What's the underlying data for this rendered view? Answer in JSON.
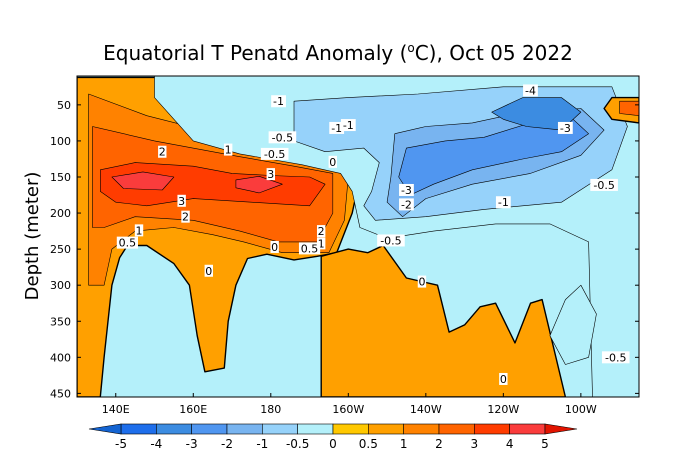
{
  "chart_data": {
    "type": "heatmap",
    "title": "Equatorial T Penatd Anomaly (°C), Oct 05 2022",
    "title_prefix": "Equatorial T Penatd Anomaly (",
    "title_degree": "o",
    "title_suffix": "C), Oct 05 2022",
    "ylabel": "Depth (meter)",
    "xlabel": "",
    "xlim": [
      130,
      275
    ],
    "ylim": [
      455,
      10
    ],
    "x_ticks": [
      {
        "value": 140,
        "label": "140E"
      },
      {
        "value": 160,
        "label": "160E"
      },
      {
        "value": 180,
        "label": "180"
      },
      {
        "value": 200,
        "label": "160W"
      },
      {
        "value": 220,
        "label": "140W"
      },
      {
        "value": 240,
        "label": "120W"
      },
      {
        "value": 260,
        "label": "100W"
      }
    ],
    "y_ticks": [
      {
        "value": 50,
        "label": "50"
      },
      {
        "value": 100,
        "label": "100"
      },
      {
        "value": 150,
        "label": "150"
      },
      {
        "value": 200,
        "label": "200"
      },
      {
        "value": 250,
        "label": "250"
      },
      {
        "value": 300,
        "label": "300"
      },
      {
        "value": 350,
        "label": "350"
      },
      {
        "value": 400,
        "label": "400"
      },
      {
        "value": 450,
        "label": "450"
      }
    ],
    "colorbar": {
      "levels": [
        "-5",
        "-4",
        "-3",
        "-2",
        "-1",
        "-0.5",
        "0",
        "0.5",
        "1",
        "2",
        "3",
        "4",
        "5"
      ],
      "colors": [
        "#1464d2",
        "#1e6eeb",
        "#3c8ce1",
        "#5096f0",
        "#78b4f0",
        "#96d2fa",
        "#b4f0fa",
        "#ffc800",
        "#ffa000",
        "#ff8200",
        "#ff6400",
        "#ff3c00",
        "#fa3c3c",
        "#e11400"
      ]
    },
    "regions": [
      {
        "level": 0.5,
        "points": [
          [
            130,
            12
          ],
          [
            188,
            12
          ],
          [
            196,
            70
          ],
          [
            202,
            120
          ],
          [
            203,
            150
          ],
          [
            201,
            200
          ],
          [
            197,
            255
          ],
          [
            192,
            260
          ],
          [
            186,
            265
          ],
          [
            179,
            257
          ],
          [
            174,
            263
          ],
          [
            171,
            300
          ],
          [
            169,
            350
          ],
          [
            168,
            415
          ],
          [
            163,
            420
          ],
          [
            161,
            370
          ],
          [
            159,
            300
          ],
          [
            155,
            270
          ],
          [
            148,
            245
          ],
          [
            143,
            245
          ],
          [
            141,
            262
          ],
          [
            139,
            300
          ],
          [
            137,
            400
          ],
          [
            136,
            455
          ],
          [
            130,
            455
          ]
        ]
      },
      {
        "level": 0.5,
        "points": [
          [
            193,
            260
          ],
          [
            200,
            250
          ],
          [
            205,
            255
          ],
          [
            209,
            245
          ],
          [
            215,
            290
          ],
          [
            223,
            300
          ],
          [
            226,
            365
          ],
          [
            230,
            355
          ],
          [
            234,
            330
          ],
          [
            238,
            325
          ],
          [
            243,
            380
          ],
          [
            247,
            325
          ],
          [
            250,
            320
          ],
          [
            256,
            455
          ],
          [
            193,
            455
          ]
        ]
      },
      {
        "level": 1,
        "points": [
          [
            133,
            35
          ],
          [
            148,
            65
          ],
          [
            170,
            95
          ],
          [
            186,
            120
          ],
          [
            199,
            135
          ],
          [
            200,
            150
          ],
          [
            199,
            210
          ],
          [
            195,
            255
          ],
          [
            183,
            255
          ],
          [
            173,
            240
          ],
          [
            165,
            230
          ],
          [
            155,
            220
          ],
          [
            145,
            225
          ],
          [
            139,
            250
          ],
          [
            137,
            300
          ],
          [
            133,
            300
          ]
        ]
      },
      {
        "level": 2,
        "points": [
          [
            134,
            80
          ],
          [
            150,
            100
          ],
          [
            170,
            120
          ],
          [
            186,
            135
          ],
          [
            196,
            145
          ],
          [
            196,
            200
          ],
          [
            192,
            240
          ],
          [
            182,
            240
          ],
          [
            172,
            225
          ],
          [
            160,
            210
          ],
          [
            145,
            205
          ],
          [
            137,
            220
          ],
          [
            134,
            220
          ]
        ]
      },
      {
        "level": 3,
        "points": [
          [
            136,
            140
          ],
          [
            145,
            130
          ],
          [
            160,
            135
          ],
          [
            170,
            145
          ],
          [
            180,
            148
          ],
          [
            190,
            150
          ],
          [
            194,
            160
          ],
          [
            190,
            190
          ],
          [
            175,
            185
          ],
          [
            160,
            180
          ],
          [
            148,
            190
          ],
          [
            140,
            185
          ],
          [
            136,
            170
          ]
        ]
      },
      {
        "level": 4,
        "points": [
          [
            139,
            150
          ],
          [
            147,
            143
          ],
          [
            155,
            150
          ],
          [
            152,
            168
          ],
          [
            142,
            166
          ]
        ]
      },
      {
        "level": 4,
        "points": [
          [
            171,
            154
          ],
          [
            177,
            149
          ],
          [
            183,
            160
          ],
          [
            177,
            172
          ],
          [
            171,
            165
          ]
        ]
      },
      {
        "level": -0.5,
        "points": [
          [
            150,
            10
          ],
          [
            275,
            10
          ],
          [
            275,
            455
          ],
          [
            263,
            455
          ],
          [
            262,
            240
          ],
          [
            252,
            215
          ],
          [
            238,
            215
          ],
          [
            222,
            225
          ],
          [
            210,
            235
          ],
          [
            203,
            220
          ],
          [
            201,
            170
          ],
          [
            198,
            145
          ],
          [
            188,
            133
          ],
          [
            172,
            118
          ],
          [
            160,
            100
          ],
          [
            150,
            40
          ]
        ]
      },
      {
        "level": -0.5,
        "points": [
          [
            252,
            370
          ],
          [
            256,
            320
          ],
          [
            260,
            300
          ],
          [
            264,
            340
          ],
          [
            262,
            400
          ],
          [
            256,
            410
          ]
        ]
      },
      {
        "level": -1,
        "points": [
          [
            186,
            45
          ],
          [
            200,
            40
          ],
          [
            218,
            35
          ],
          [
            240,
            25
          ],
          [
            268,
            25
          ],
          [
            272,
            80
          ],
          [
            268,
            140
          ],
          [
            255,
            185
          ],
          [
            235,
            195
          ],
          [
            220,
            205
          ],
          [
            207,
            210
          ],
          [
            204,
            190
          ],
          [
            206,
            170
          ],
          [
            208,
            130
          ],
          [
            204,
            110
          ],
          [
            194,
            115
          ],
          [
            186,
            100
          ]
        ]
      },
      {
        "level": -2,
        "points": [
          [
            212,
            90
          ],
          [
            220,
            80
          ],
          [
            232,
            75
          ],
          [
            245,
            60
          ],
          [
            260,
            55
          ],
          [
            266,
            85
          ],
          [
            260,
            120
          ],
          [
            247,
            145
          ],
          [
            232,
            160
          ],
          [
            220,
            180
          ],
          [
            214,
            205
          ],
          [
            210,
            185
          ],
          [
            211,
            150
          ]
        ]
      },
      {
        "level": -3,
        "points": [
          [
            215,
            110
          ],
          [
            225,
            100
          ],
          [
            235,
            95
          ],
          [
            247,
            75
          ],
          [
            258,
            70
          ],
          [
            262,
            90
          ],
          [
            255,
            115
          ],
          [
            245,
            125
          ],
          [
            232,
            140
          ],
          [
            222,
            160
          ],
          [
            216,
            175
          ],
          [
            213,
            150
          ]
        ]
      },
      {
        "level": -4,
        "points": [
          [
            237,
            60
          ],
          [
            245,
            40
          ],
          [
            255,
            40
          ],
          [
            260,
            60
          ],
          [
            255,
            85
          ],
          [
            246,
            80
          ],
          [
            240,
            70
          ]
        ]
      },
      {
        "level": 0.5,
        "points": [
          [
            268,
            40
          ],
          [
            275,
            40
          ],
          [
            275,
            75
          ],
          [
            268,
            70
          ],
          [
            266,
            55
          ]
        ]
      },
      {
        "level": 2,
        "points": [
          [
            270,
            45
          ],
          [
            275,
            45
          ],
          [
            275,
            65
          ],
          [
            270,
            62
          ]
        ]
      }
    ],
    "contour_labels": [
      {
        "text": "-1",
        "x": 182,
        "y": 45
      },
      {
        "text": "-0.5",
        "x": 183,
        "y": 95
      },
      {
        "text": "-0.5",
        "x": 181,
        "y": 118
      },
      {
        "text": "-1",
        "x": 197,
        "y": 82
      },
      {
        "text": "-1",
        "x": 200,
        "y": 78
      },
      {
        "text": "0",
        "x": 196,
        "y": 129
      },
      {
        "text": "2",
        "x": 152,
        "y": 115
      },
      {
        "text": "1",
        "x": 169,
        "y": 112
      },
      {
        "text": "3",
        "x": 180,
        "y": 146
      },
      {
        "text": "3",
        "x": 157,
        "y": 183
      },
      {
        "text": "2",
        "x": 158,
        "y": 205
      },
      {
        "text": "1",
        "x": 146,
        "y": 224
      },
      {
        "text": "0.5",
        "x": 143,
        "y": 241
      },
      {
        "text": "0",
        "x": 164,
        "y": 280
      },
      {
        "text": "0",
        "x": 181,
        "y": 247
      },
      {
        "text": "2",
        "x": 193,
        "y": 225
      },
      {
        "text": "1",
        "x": 193,
        "y": 242
      },
      {
        "text": "0.5",
        "x": 190,
        "y": 249
      },
      {
        "text": "-0.5",
        "x": 211,
        "y": 238
      },
      {
        "text": "0",
        "x": 219,
        "y": 295
      },
      {
        "text": "-4",
        "x": 247,
        "y": 30
      },
      {
        "text": "-3",
        "x": 256,
        "y": 82
      },
      {
        "text": "-3",
        "x": 215,
        "y": 168
      },
      {
        "text": "-2",
        "x": 215,
        "y": 188
      },
      {
        "text": "-1",
        "x": 240,
        "y": 185
      },
      {
        "text": "-0.5",
        "x": 266,
        "y": 161
      },
      {
        "text": "-0.5",
        "x": 269,
        "y": 400
      },
      {
        "text": "0",
        "x": 240,
        "y": 430
      }
    ]
  }
}
